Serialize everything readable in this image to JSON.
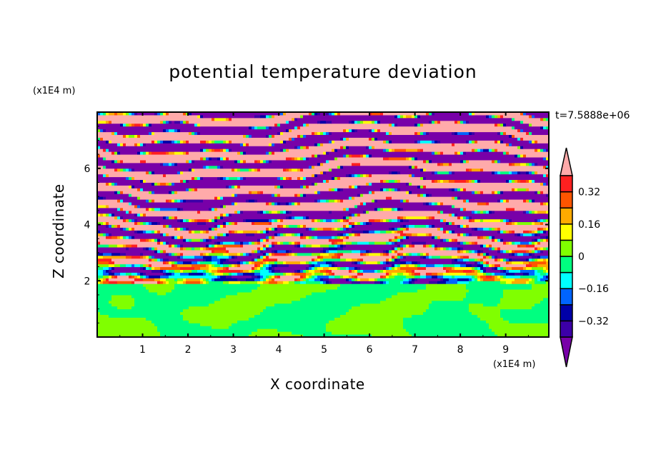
{
  "chart_data": {
    "type": "heatmap",
    "title": "potential temperature deviation",
    "xlabel": "X coordinate",
    "ylabel": "Z coordinate",
    "x_unit": "(x1E4 m)",
    "y_unit": "(x1E4 m)",
    "xlim": [
      0,
      9.95
    ],
    "ylim": [
      0,
      8
    ],
    "x_ticks": [
      "1",
      "2",
      "3",
      "4",
      "5",
      "6",
      "7",
      "8",
      "9"
    ],
    "y_ticks": [
      "2",
      "4",
      "6"
    ],
    "time_label": "t=7.5888e+06",
    "colorbar": {
      "levels": [
        -0.4,
        -0.32,
        -0.24,
        -0.16,
        -0.08,
        0,
        0.08,
        0.16,
        0.24,
        0.32,
        0.4
      ],
      "colors": [
        "#7800a8",
        "#3c00a8",
        "#0000a8",
        "#0064ff",
        "#00ffff",
        "#00ff80",
        "#80ff00",
        "#ffff00",
        "#ffaa00",
        "#ff5500",
        "#ff2020",
        "#ffaaaa"
      ],
      "labels": [
        "0.32",
        "0.16",
        "0",
        "-0.16",
        "-0.32"
      ],
      "label_values": [
        0.32,
        0.16,
        0,
        -0.16,
        -0.32
      ]
    },
    "description_regions": [
      {
        "z_range": [
          0,
          2
        ],
        "value_range": [
          -0.08,
          0.08
        ]
      },
      {
        "z_range": [
          2,
          4.5
        ],
        "value_range": [
          -0.4,
          0.4
        ]
      },
      {
        "z_range": [
          4.5,
          8
        ],
        "value_range": [
          "<-0.4",
          ">0.4"
        ]
      }
    ]
  }
}
